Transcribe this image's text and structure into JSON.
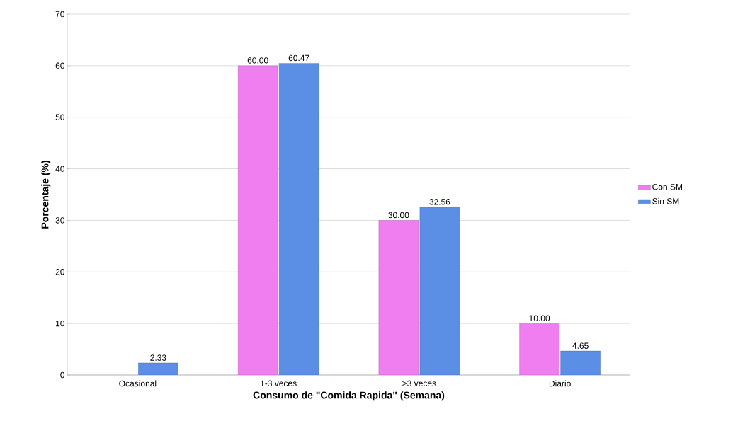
{
  "chart_data": {
    "type": "bar",
    "xlabel": "Consumo de \"Comida Rapida\" (Semana)",
    "ylabel": "Porcentaje (%)",
    "categories": [
      "Ocasional",
      "1-3 veces",
      ">3 veces",
      "Diario"
    ],
    "series": [
      {
        "name": "Con SM",
        "color": "#f07ef0",
        "values": [
          null,
          60.0,
          30.0,
          10.0
        ],
        "value_labels": [
          null,
          "60.00",
          "30.00",
          "10.00"
        ]
      },
      {
        "name": "Sin SM",
        "color": "#5b8fe6",
        "values": [
          2.33,
          60.47,
          32.56,
          4.65
        ],
        "value_labels": [
          "2.33",
          "60.47",
          "32.56",
          "4.65"
        ]
      }
    ],
    "ylim": [
      0,
      70
    ],
    "yticks": [
      0,
      10,
      20,
      30,
      40,
      50,
      60,
      70
    ],
    "grid": "y",
    "legend": "right"
  }
}
